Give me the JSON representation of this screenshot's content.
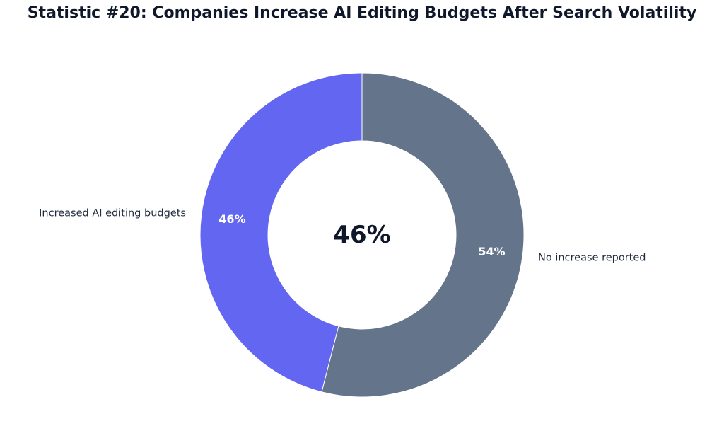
{
  "chart_data": {
    "type": "pie",
    "style": "donut",
    "title": "Statistic #20: Companies Increase AI Editing Budgets After Search Volatility",
    "center_label": "46%",
    "slices": [
      {
        "label": "Increased AI editing budgets",
        "value": 46,
        "value_label": "46%",
        "color": "#6366f1"
      },
      {
        "label": "No increase reported",
        "value": 54,
        "value_label": "54%",
        "color": "#64748b"
      }
    ],
    "start_angle": "top",
    "direction": "counterclockwise",
    "legend": "none"
  },
  "colors": {
    "title": "#0f172a",
    "label": "#1e293b",
    "center": "#0f172a",
    "pct_label": "#ffffff",
    "background": "#ffffff"
  }
}
